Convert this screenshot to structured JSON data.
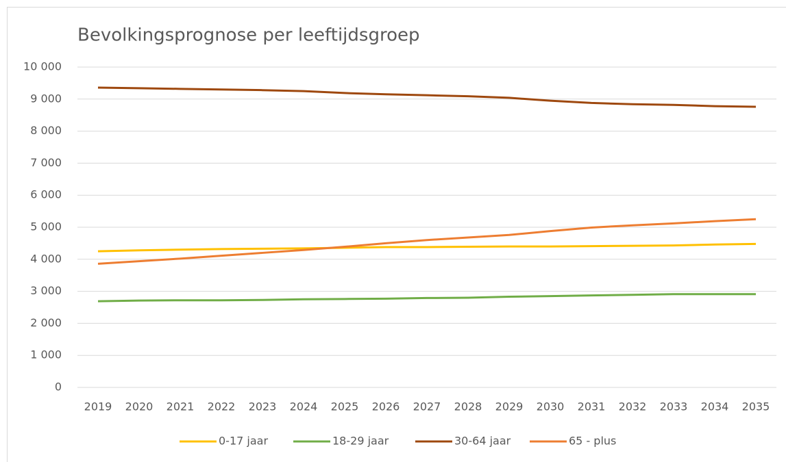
{
  "chart_data": {
    "type": "line",
    "title": "Bevolkingsprognose per leeftijdsgroep",
    "categories": [
      "2019",
      "2020",
      "2021",
      "2022",
      "2023",
      "2024",
      "2025",
      "2026",
      "2027",
      "2028",
      "2029",
      "2030",
      "2031",
      "2032",
      "2033",
      "2034",
      "2035"
    ],
    "series": [
      {
        "name": "0-17 jaar",
        "color": "#ffc000",
        "values": [
          4250,
          4280,
          4300,
          4320,
          4330,
          4340,
          4360,
          4380,
          4380,
          4390,
          4400,
          4400,
          4410,
          4420,
          4430,
          4460,
          4480
        ]
      },
      {
        "name": "18-29 jaar",
        "color": "#70ad47",
        "values": [
          2690,
          2710,
          2720,
          2720,
          2730,
          2750,
          2760,
          2770,
          2790,
          2800,
          2830,
          2850,
          2870,
          2890,
          2910,
          2910,
          2910
        ]
      },
      {
        "name": "30-64 jaar",
        "color": "#9e480e",
        "values": [
          9360,
          9340,
          9320,
          9300,
          9280,
          9250,
          9190,
          9150,
          9120,
          9090,
          9040,
          8950,
          8880,
          8840,
          8820,
          8780,
          8760
        ]
      },
      {
        "name": "65 - plus",
        "color": "#ed7d31",
        "values": [
          3860,
          3940,
          4020,
          4110,
          4200,
          4290,
          4390,
          4500,
          4600,
          4680,
          4760,
          4880,
          4990,
          5060,
          5120,
          5190,
          5250
        ]
      }
    ],
    "ylim": [
      0,
      10000
    ],
    "yticks": [
      0,
      {
        "value": 1000,
        "label": "1 000"
      },
      {
        "value": 2000,
        "label": "2 000"
      },
      {
        "value": 3000,
        "label": "3 000"
      },
      {
        "value": 4000,
        "label": "4 000"
      },
      {
        "value": 5000,
        "label": "5 000"
      },
      {
        "value": 6000,
        "label": "6 000"
      },
      {
        "value": 7000,
        "label": "7 000"
      },
      {
        "value": 8000,
        "label": "8 000"
      },
      {
        "value": 9000,
        "label": "9 000"
      },
      {
        "value": 10000,
        "label": "10 000"
      }
    ],
    "grid": true,
    "legend": "bottom"
  }
}
